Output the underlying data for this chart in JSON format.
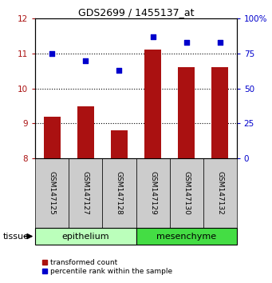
{
  "title": "GDS2699 / 1455137_at",
  "samples": [
    "GSM147125",
    "GSM147127",
    "GSM147128",
    "GSM147129",
    "GSM147130",
    "GSM147132"
  ],
  "bar_values": [
    9.2,
    9.5,
    8.8,
    11.1,
    10.6,
    10.6
  ],
  "dot_values": [
    75,
    70,
    63,
    87,
    83,
    83
  ],
  "bar_color": "#aa1111",
  "dot_color": "#0000cc",
  "ylim_left": [
    8,
    12
  ],
  "ylim_right": [
    0,
    100
  ],
  "yticks_left": [
    8,
    9,
    10,
    11,
    12
  ],
  "yticks_right": [
    0,
    25,
    50,
    75,
    100
  ],
  "ytick_labels_right": [
    "0",
    "25",
    "50",
    "75",
    "100%"
  ],
  "groups": [
    {
      "label": "epithelium",
      "indices": [
        0,
        1,
        2
      ],
      "color": "#bbffbb"
    },
    {
      "label": "mesenchyme",
      "indices": [
        3,
        4,
        5
      ],
      "color": "#44dd44"
    }
  ],
  "tissue_label": "tissue",
  "legend_bar_label": "transformed count",
  "legend_dot_label": "percentile rank within the sample",
  "bar_width": 0.5,
  "tick_area_color": "#cccccc"
}
